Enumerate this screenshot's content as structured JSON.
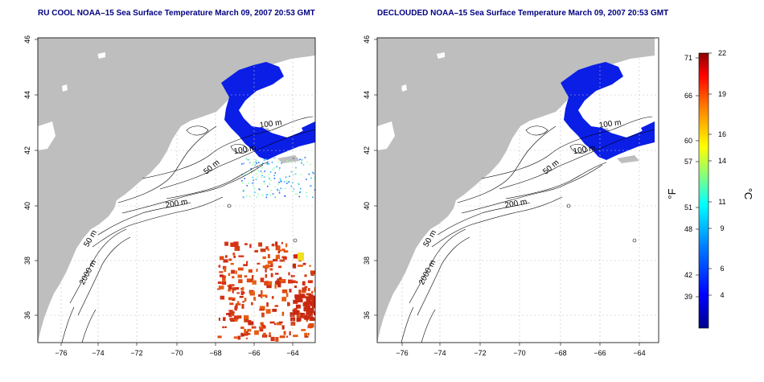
{
  "panels": [
    {
      "title": "RU COOL NOAA–15 Sea Surface Temperature March 09, 2007 20:53 GMT",
      "contour_labels": [
        "100 m",
        "100 m",
        "50 m",
        "200 m",
        "50 m",
        "2000 m"
      ]
    },
    {
      "title": "DECLOUDED NOAA–15 Sea Surface Temperature March 09, 2007 20:53 GMT",
      "contour_labels": [
        "100 m",
        "100 m",
        "50 m",
        "200 m",
        "50 m",
        "2000 m"
      ]
    }
  ],
  "map_axes": {
    "x_ticks": [
      "−76",
      "−74",
      "−72",
      "−70",
      "−68",
      "−66",
      "−64"
    ],
    "y_ticks": [
      "36",
      "38",
      "40",
      "42",
      "44",
      "46"
    ],
    "lon_range": [
      -77,
      -63
    ],
    "lat_range": [
      35,
      46
    ]
  },
  "colorbar": {
    "fahrenheit_label": "°F",
    "celsius_label": "°C",
    "fahrenheit_ticks": [
      "71",
      "66",
      "60",
      "57",
      "51",
      "48",
      "42",
      "39"
    ],
    "celsius_ticks": [
      "22",
      "19",
      "16",
      "14",
      "11",
      "9",
      "6",
      "4"
    ],
    "range_c": [
      1,
      22
    ],
    "colors": [
      "#00008b",
      "#0000ff",
      "#0080ff",
      "#00ffff",
      "#80ff80",
      "#ffff00",
      "#ff8000",
      "#ff0000",
      "#8b0000"
    ]
  },
  "colors": {
    "land": "#bebebe",
    "cold_sst": "#0a1ee6",
    "warm_sst": "#d23c14",
    "title": "#000080",
    "grid": "#bfbfbf"
  }
}
